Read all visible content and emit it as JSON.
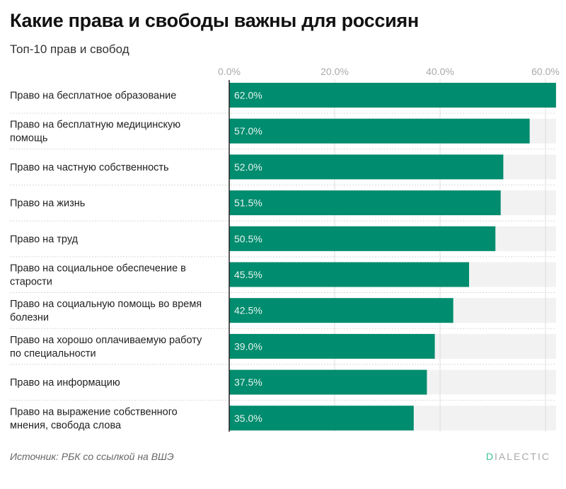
{
  "header": {
    "title": "Какие права и свободы важны для россиян",
    "subtitle": "Топ-10 прав и свобод"
  },
  "footer": {
    "source": "Источник: РБК со ссылкой на ВШЭ",
    "brand_first": "D",
    "brand_rest": "IALECTIC"
  },
  "colors": {
    "bar": "#008c6e",
    "track": "#f2f2f2",
    "brand_accent": "#3cc48f"
  },
  "chart_data": {
    "type": "bar",
    "orientation": "horizontal",
    "title": "Какие права и свободы важны для россиян",
    "subtitle": "Топ-10 прав и свобод",
    "xlabel": "",
    "ylabel": "",
    "xlim": [
      0,
      62
    ],
    "xticks": [
      0,
      20,
      40,
      60
    ],
    "xtick_labels": [
      "0.0%",
      "20.0%",
      "40.0%",
      "60.0%"
    ],
    "grid": true,
    "categories": [
      [
        "Право на бесплатное образование"
      ],
      [
        "Право на бесплатную медицинскую",
        "помощь"
      ],
      [
        "Право на частную собственность"
      ],
      [
        "Право на жизнь"
      ],
      [
        "Право на труд"
      ],
      [
        "Право на социальное обеспечение в",
        "старости"
      ],
      [
        "Право на социальную помощь во время",
        "болезни"
      ],
      [
        "Право на хорошо оплачиваемую работу",
        "по специальности"
      ],
      [
        "Право на информацию"
      ],
      [
        "Право на выражение собственного",
        "мнения, свобода слова"
      ]
    ],
    "values": [
      62.0,
      57.0,
      52.0,
      51.5,
      50.5,
      45.5,
      42.5,
      39.0,
      37.5,
      35.0
    ],
    "value_labels": [
      "62.0%",
      "57.0%",
      "52.0%",
      "51.5%",
      "50.5%",
      "45.5%",
      "42.5%",
      "39.0%",
      "37.5%",
      "35.0%"
    ]
  }
}
